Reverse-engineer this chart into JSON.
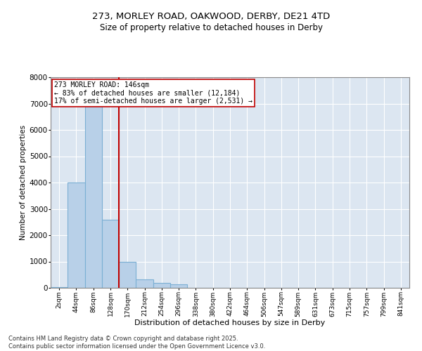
{
  "title1": "273, MORLEY ROAD, OAKWOOD, DERBY, DE21 4TD",
  "title2": "Size of property relative to detached houses in Derby",
  "xlabel": "Distribution of detached houses by size in Derby",
  "ylabel": "Number of detached properties",
  "categories": [
    "2sqm",
    "44sqm",
    "86sqm",
    "128sqm",
    "170sqm",
    "212sqm",
    "254sqm",
    "296sqm",
    "338sqm",
    "380sqm",
    "422sqm",
    "464sqm",
    "506sqm",
    "547sqm",
    "589sqm",
    "631sqm",
    "673sqm",
    "715sqm",
    "757sqm",
    "799sqm",
    "841sqm"
  ],
  "values": [
    30,
    4000,
    7250,
    2600,
    1000,
    320,
    200,
    130,
    0,
    0,
    0,
    0,
    0,
    0,
    0,
    0,
    0,
    0,
    0,
    0,
    0
  ],
  "bar_color": "#b8d0e8",
  "bar_edge_color": "#7bafd4",
  "bg_color": "#dce6f1",
  "grid_color": "#ffffff",
  "vline_x": 3.5,
  "vline_color": "#c00000",
  "annotation_text": "273 MORLEY ROAD: 146sqm\n← 83% of detached houses are smaller (12,184)\n17% of semi-detached houses are larger (2,531) →",
  "annotation_box_color": "#ffffff",
  "annotation_box_edge": "#c00000",
  "ylim": [
    0,
    8000
  ],
  "yticks": [
    0,
    1000,
    2000,
    3000,
    4000,
    5000,
    6000,
    7000,
    8000
  ],
  "footnote1": "Contains HM Land Registry data © Crown copyright and database right 2025.",
  "footnote2": "Contains public sector information licensed under the Open Government Licence v3.0."
}
